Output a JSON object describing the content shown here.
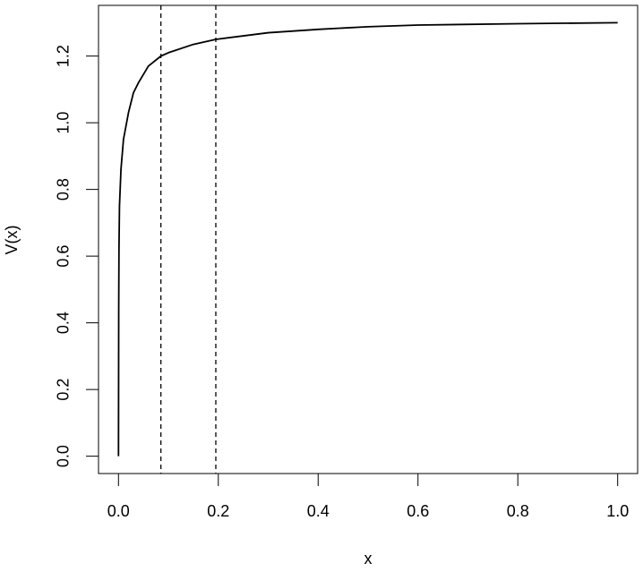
{
  "chart_data": {
    "type": "line",
    "xlabel": "x",
    "ylabel": "V(x)",
    "x": [
      0,
      0.0005,
      0.001,
      0.002,
      0.005,
      0.01,
      0.02,
      0.03,
      0.04,
      0.06,
      0.085,
      0.1,
      0.15,
      0.195,
      0.3,
      0.4,
      0.5,
      0.6,
      0.8,
      1.0
    ],
    "values": [
      0,
      0.45,
      0.62,
      0.75,
      0.86,
      0.95,
      1.03,
      1.09,
      1.12,
      1.17,
      1.2,
      1.21,
      1.235,
      1.25,
      1.27,
      1.28,
      1.288,
      1.293,
      1.297,
      1.3
    ],
    "color": "#000000",
    "vlines": [
      0.085,
      0.195
    ],
    "xlim": [
      -0.04,
      1.04
    ],
    "ylim": [
      -0.052,
      1.352
    ],
    "xticks": [
      {
        "value": 0,
        "label": "0.0"
      },
      0.2,
      0.4,
      0.6,
      0.8,
      {
        "value": 1,
        "label": "1.0"
      }
    ],
    "yticks": [
      {
        "value": 0,
        "label": "0.0"
      },
      0.2,
      0.4,
      0.6,
      0.8,
      {
        "value": 1,
        "label": "1.0"
      },
      1.2
    ]
  }
}
